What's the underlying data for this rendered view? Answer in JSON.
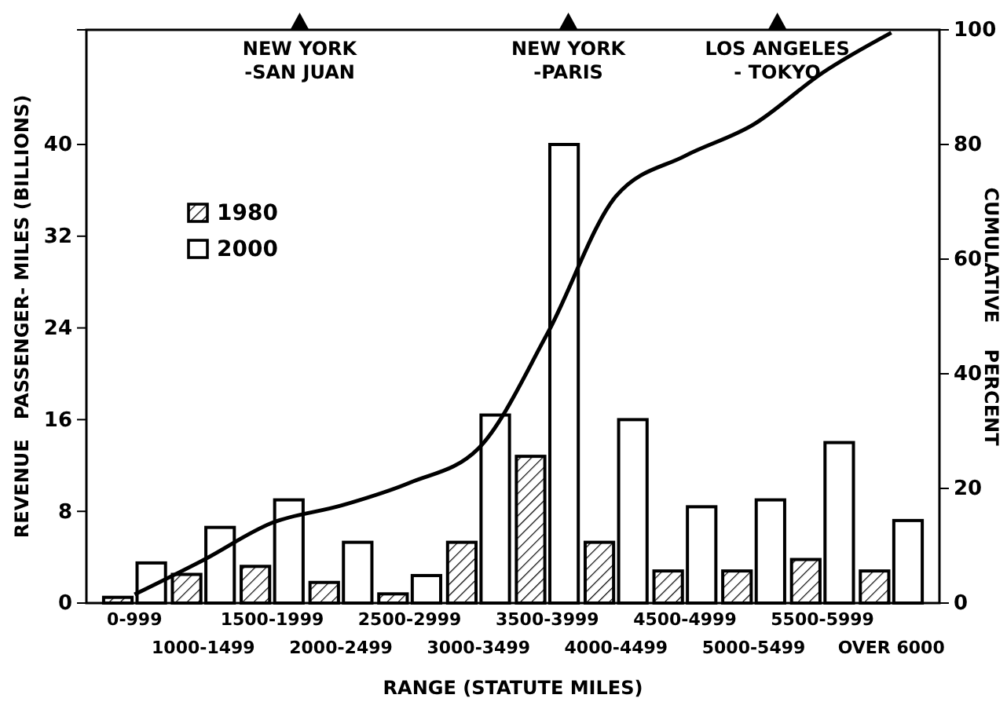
{
  "chart_data": {
    "type": "bar",
    "xlabel": "RANGE  (STATUTE MILES)",
    "ylabel": "REVENUE   PASSENGER- MILES (BILLIONS)",
    "y2label": "CUMULATIVE    PERCENT",
    "categories": [
      "0-999",
      "1000-1499",
      "1500-1999",
      "2000-2499",
      "2500-2999",
      "3000-3499",
      "3500-3999",
      "4000-4499",
      "4500-4999",
      "5000-5499",
      "5500-5999",
      "OVER 6000"
    ],
    "series": [
      {
        "name": "1980",
        "color": "#000000",
        "values": [
          0.5,
          2.5,
          3.2,
          1.8,
          0.8,
          5.3,
          12.8,
          5.3,
          2.8,
          2.8,
          3.8,
          2.8
        ]
      },
      {
        "name": "2000",
        "color": "#ffffff",
        "values": [
          3.5,
          6.6,
          9.0,
          5.3,
          2.4,
          16.4,
          40,
          16,
          8.4,
          9.0,
          14,
          7.2
        ]
      },
      {
        "type": "line",
        "axis": "y2",
        "color": "#000000",
        "values": [
          1.5,
          7.5,
          14,
          17,
          21,
          27,
          47,
          71,
          78,
          83.5,
          92.5,
          99.5
        ]
      }
    ],
    "ylim": [
      0,
      50
    ],
    "yticks": [
      0,
      8,
      16,
      24,
      32,
      40
    ],
    "y2lim": [
      0,
      100
    ],
    "y2ticks": [
      0,
      20,
      40,
      60,
      80,
      100
    ],
    "legend": "top left",
    "grid": false,
    "annotations": [
      "NEW YORK\n-SAN JUAN",
      "NEW YORK\n-PARIS",
      "LOS ANGELES\n- TOKYO"
    ]
  }
}
